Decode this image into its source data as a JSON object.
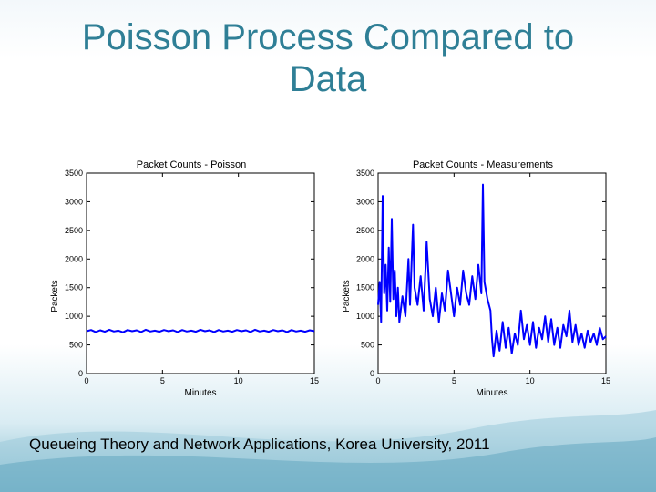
{
  "slide": {
    "title": "Poisson Process Compared to\nData",
    "footer": "Queueing Theory and Network Applications, Korea University, 2011"
  },
  "colors": {
    "title": "#2f7f96",
    "series": "#0000ff"
  },
  "chart_data": [
    {
      "type": "line",
      "title": "Packet Counts - Poisson",
      "xlabel": "Minutes",
      "ylabel": "Packets",
      "xlim": [
        0,
        15
      ],
      "ylim": [
        0,
        3500
      ],
      "xticks": [
        0,
        5,
        10,
        15
      ],
      "yticks": [
        0,
        500,
        1000,
        1500,
        2000,
        2500,
        3000,
        3500
      ],
      "grid": false,
      "series": [
        {
          "values": [
            [
              0.0,
              740
            ],
            [
              0.3,
              760
            ],
            [
              0.6,
              725
            ],
            [
              0.9,
              755
            ],
            [
              1.2,
              730
            ],
            [
              1.5,
              765
            ],
            [
              1.8,
              735
            ],
            [
              2.1,
              750
            ],
            [
              2.4,
              720
            ],
            [
              2.7,
              760
            ],
            [
              3.0,
              740
            ],
            [
              3.3,
              755
            ],
            [
              3.6,
              725
            ],
            [
              3.9,
              765
            ],
            [
              4.2,
              735
            ],
            [
              4.5,
              750
            ],
            [
              4.8,
              730
            ],
            [
              5.1,
              760
            ],
            [
              5.4,
              740
            ],
            [
              5.7,
              755
            ],
            [
              6.0,
              725
            ],
            [
              6.3,
              760
            ],
            [
              6.6,
              735
            ],
            [
              6.9,
              750
            ],
            [
              7.2,
              730
            ],
            [
              7.5,
              765
            ],
            [
              7.8,
              740
            ],
            [
              8.1,
              755
            ],
            [
              8.4,
              725
            ],
            [
              8.7,
              760
            ],
            [
              9.0,
              735
            ],
            [
              9.3,
              750
            ],
            [
              9.6,
              730
            ],
            [
              9.9,
              760
            ],
            [
              10.2,
              740
            ],
            [
              10.5,
              755
            ],
            [
              10.8,
              725
            ],
            [
              11.1,
              765
            ],
            [
              11.4,
              735
            ],
            [
              11.7,
              750
            ],
            [
              12.0,
              730
            ],
            [
              12.3,
              760
            ],
            [
              12.6,
              740
            ],
            [
              12.9,
              755
            ],
            [
              13.2,
              725
            ],
            [
              13.5,
              760
            ],
            [
              13.8,
              735
            ],
            [
              14.1,
              750
            ],
            [
              14.4,
              730
            ],
            [
              14.7,
              755
            ],
            [
              15.0,
              740
            ]
          ]
        }
      ]
    },
    {
      "type": "line",
      "title": "Packet Counts - Measurements",
      "xlabel": "Minutes",
      "ylabel": "Packets",
      "xlim": [
        0,
        15
      ],
      "ylim": [
        0,
        3500
      ],
      "xticks": [
        0,
        5,
        10,
        15
      ],
      "yticks": [
        0,
        500,
        1000,
        1500,
        2000,
        2500,
        3000,
        3500
      ],
      "grid": false,
      "series": [
        {
          "values": [
            [
              0.0,
              1200
            ],
            [
              0.1,
              1600
            ],
            [
              0.2,
              900
            ],
            [
              0.3,
              3100
            ],
            [
              0.4,
              1400
            ],
            [
              0.5,
              1900
            ],
            [
              0.6,
              1100
            ],
            [
              0.7,
              2200
            ],
            [
              0.8,
              1250
            ],
            [
              0.9,
              2700
            ],
            [
              1.0,
              1300
            ],
            [
              1.1,
              1800
            ],
            [
              1.2,
              1000
            ],
            [
              1.3,
              1500
            ],
            [
              1.4,
              900
            ],
            [
              1.6,
              1350
            ],
            [
              1.8,
              1000
            ],
            [
              2.0,
              2000
            ],
            [
              2.1,
              1200
            ],
            [
              2.3,
              2600
            ],
            [
              2.4,
              1500
            ],
            [
              2.6,
              1200
            ],
            [
              2.8,
              1700
            ],
            [
              3.0,
              1100
            ],
            [
              3.2,
              2300
            ],
            [
              3.4,
              1300
            ],
            [
              3.6,
              1000
            ],
            [
              3.8,
              1500
            ],
            [
              4.0,
              900
            ],
            [
              4.2,
              1400
            ],
            [
              4.4,
              1100
            ],
            [
              4.6,
              1800
            ],
            [
              4.8,
              1400
            ],
            [
              5.0,
              1000
            ],
            [
              5.2,
              1500
            ],
            [
              5.4,
              1200
            ],
            [
              5.6,
              1800
            ],
            [
              5.8,
              1400
            ],
            [
              6.0,
              1200
            ],
            [
              6.2,
              1700
            ],
            [
              6.4,
              1300
            ],
            [
              6.6,
              1900
            ],
            [
              6.8,
              1400
            ],
            [
              6.9,
              3300
            ],
            [
              7.0,
              1600
            ],
            [
              7.2,
              1300
            ],
            [
              7.4,
              1100
            ],
            [
              7.5,
              600
            ],
            [
              7.6,
              300
            ],
            [
              7.8,
              750
            ],
            [
              8.0,
              400
            ],
            [
              8.2,
              900
            ],
            [
              8.4,
              450
            ],
            [
              8.6,
              800
            ],
            [
              8.8,
              350
            ],
            [
              9.0,
              700
            ],
            [
              9.2,
              500
            ],
            [
              9.4,
              1100
            ],
            [
              9.6,
              600
            ],
            [
              9.8,
              850
            ],
            [
              10.0,
              500
            ],
            [
              10.2,
              900
            ],
            [
              10.4,
              450
            ],
            [
              10.6,
              800
            ],
            [
              10.8,
              600
            ],
            [
              11.0,
              1000
            ],
            [
              11.2,
              550
            ],
            [
              11.4,
              950
            ],
            [
              11.6,
              500
            ],
            [
              11.8,
              800
            ],
            [
              12.0,
              450
            ],
            [
              12.2,
              850
            ],
            [
              12.4,
              650
            ],
            [
              12.6,
              1100
            ],
            [
              12.8,
              550
            ],
            [
              13.0,
              850
            ],
            [
              13.2,
              500
            ],
            [
              13.4,
              700
            ],
            [
              13.6,
              450
            ],
            [
              13.8,
              750
            ],
            [
              14.0,
              550
            ],
            [
              14.2,
              700
            ],
            [
              14.4,
              500
            ],
            [
              14.6,
              800
            ],
            [
              14.8,
              600
            ],
            [
              15.0,
              650
            ]
          ]
        }
      ]
    }
  ]
}
